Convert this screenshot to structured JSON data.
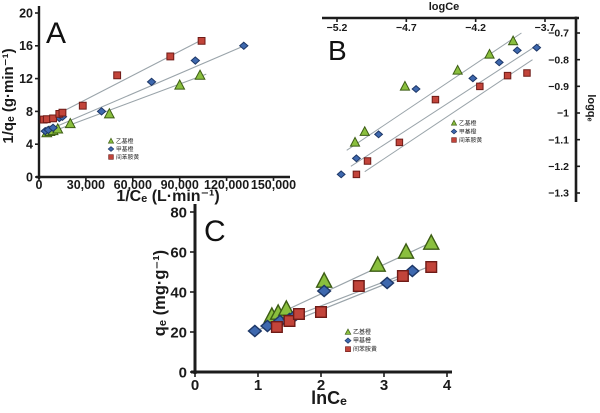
{
  "figure": {
    "description_labels": {
      "panel_a": "A",
      "panel_b": "B",
      "panel_c": "C"
    },
    "background": "#ffffff"
  },
  "colors": {
    "trend_line": "#9aa4aa",
    "axis": "#1c1c1c",
    "text": "#1a1a1a",
    "background": "#ffffff"
  },
  "legend": {
    "entries": [
      {
        "label": "乙基橙",
        "marker": "triangle",
        "fill": "#8abf3e",
        "stroke": "#3c5c14"
      },
      {
        "label": "甲基橙",
        "marker": "diamond",
        "fill": "#3e68ae",
        "stroke": "#1d3767"
      },
      {
        "label": "间苯胺黄",
        "marker": "square",
        "fill": "#c2443a",
        "stroke": "#6e1b17"
      }
    ]
  },
  "chart_data": [
    {
      "id": "A",
      "type": "scatter",
      "panel_label": "A",
      "xlabel": "1/Cₑ (L·min⁻¹)",
      "ylabel": "1/qₑ (g·min⁻¹)",
      "xlim": [
        0,
        156000
      ],
      "ylim": [
        0,
        20.5
      ],
      "xticks": [
        0,
        30000,
        60000,
        90000,
        120000,
        150000
      ],
      "xtick_labels": [
        "0",
        "30,000",
        "60,000",
        "90,000",
        "120,000",
        "150,000"
      ],
      "yticks": [
        0,
        4,
        8,
        12,
        16,
        20
      ],
      "ytick_labels": [
        "0",
        "4",
        "8",
        "12",
        "16",
        "20"
      ],
      "x_axis_side": "bottom",
      "y_axis_side": "left",
      "grid": false,
      "legend_position": "inside-lower-middle",
      "series": [
        {
          "name": "乙基橙",
          "marker": "triangle",
          "points": [
            [
              5000,
              5.4
            ],
            [
              7000,
              5.55
            ],
            [
              9000,
              5.65
            ],
            [
              12000,
              5.85
            ],
            [
              20000,
              6.5
            ],
            [
              45000,
              7.7
            ],
            [
              90000,
              11.2
            ],
            [
              103000,
              12.4
            ]
          ],
          "trend": [
            [
              3000,
              5.15
            ],
            [
              107000,
              12.55
            ]
          ]
        },
        {
          "name": "甲基橙",
          "marker": "diamond",
          "points": [
            [
              4000,
              5.6
            ],
            [
              6000,
              5.75
            ],
            [
              9000,
              6.0
            ],
            [
              13000,
              7.2
            ],
            [
              15000,
              7.35
            ],
            [
              40000,
              8.0
            ],
            [
              72000,
              11.6
            ],
            [
              100000,
              14.2
            ],
            [
              131000,
              16.0
            ]
          ],
          "trend": [
            [
              3000,
              5.5
            ],
            [
              133000,
              16.15
            ]
          ]
        },
        {
          "name": "间苯胺黄",
          "marker": "square",
          "points": [
            [
              3000,
              7.0
            ],
            [
              5000,
              7.05
            ],
            [
              9000,
              7.15
            ],
            [
              13000,
              7.7
            ],
            [
              15000,
              7.85
            ],
            [
              28000,
              8.7
            ],
            [
              50000,
              12.4
            ],
            [
              84000,
              14.7
            ],
            [
              104000,
              16.6
            ]
          ],
          "trend": [
            [
              3500,
              6.85
            ],
            [
              106000,
              16.9
            ]
          ]
        }
      ]
    },
    {
      "id": "B",
      "type": "scatter",
      "panel_label": "B",
      "xlabel": "logCe",
      "ylabel": "logqₑ",
      "xlim": [
        -5.3,
        -3.48
      ],
      "ylim": [
        -1.33,
        -0.64
      ],
      "xticks": [
        -5.2,
        -4.7,
        -4.2,
        -3.7
      ],
      "xtick_labels": [
        "−5.2",
        "−4.7",
        "−4.2",
        "−3.7"
      ],
      "yticks": [
        -0.7,
        -0.8,
        -0.9,
        -1.0,
        -1.1,
        -1.2,
        -1.3
      ],
      "ytick_labels": [
        "−0.7",
        "−0.8",
        "−0.9",
        "−1",
        "−1.1",
        "−1.2",
        "−1.3"
      ],
      "x_axis_side": "top",
      "y_axis_side": "right",
      "grid": false,
      "legend_position": "inside-center",
      "series": [
        {
          "name": "乙基橙",
          "marker": "triangle",
          "points": [
            [
              -5.07,
              -1.11
            ],
            [
              -5.0,
              -1.07
            ],
            [
              -4.71,
              -0.9
            ],
            [
              -4.33,
              -0.84
            ],
            [
              -4.1,
              -0.78
            ],
            [
              -3.93,
              -0.73
            ]
          ],
          "trend": [
            [
              -5.13,
              -1.14
            ],
            [
              -3.87,
              -0.7
            ]
          ]
        },
        {
          "name": "甲基橙",
          "marker": "diamond",
          "points": [
            [
              -5.17,
              -1.23
            ],
            [
              -5.06,
              -1.17
            ],
            [
              -4.9,
              -1.08
            ],
            [
              -4.63,
              -0.91
            ],
            [
              -4.22,
              -0.87
            ],
            [
              -4.03,
              -0.81
            ],
            [
              -3.9,
              -0.765
            ],
            [
              -3.76,
              -0.755
            ]
          ],
          "trend": [
            [
              -5.1,
              -1.2
            ],
            [
              -3.74,
              -0.74
            ]
          ]
        },
        {
          "name": "间苯胺黄",
          "marker": "square",
          "points": [
            [
              -5.06,
              -1.23
            ],
            [
              -4.98,
              -1.18
            ],
            [
              -4.75,
              -1.11
            ],
            [
              -4.49,
              -0.95
            ],
            [
              -4.17,
              -0.9
            ],
            [
              -3.97,
              -0.86
            ],
            [
              -3.83,
              -0.85
            ]
          ],
          "trend": [
            [
              -5.0,
              -1.22
            ],
            [
              -3.79,
              -0.8
            ]
          ]
        }
      ]
    },
    {
      "id": "C",
      "type": "scatter",
      "panel_label": "C",
      "xlabel": "lnCₑ",
      "ylabel": "qₑ (mg·g⁻¹)",
      "xlim": [
        0,
        4.2
      ],
      "ylim": [
        0,
        84
      ],
      "xticks": [
        0,
        1,
        2,
        3,
        4
      ],
      "xtick_labels": [
        "0",
        "1",
        "2",
        "3",
        "4"
      ],
      "yticks": [
        0,
        20,
        40,
        60,
        80
      ],
      "ytick_labels": [
        "0",
        "20",
        "40",
        "60",
        "80"
      ],
      "x_axis_side": "bottom",
      "y_axis_side": "left",
      "grid": false,
      "legend_position": "inside-lower-right",
      "series": [
        {
          "name": "乙基橙",
          "marker": "triangle",
          "points": [
            [
              1.22,
              28
            ],
            [
              1.32,
              29.5
            ],
            [
              1.45,
              31.5
            ],
            [
              2.05,
              45.5
            ],
            [
              2.9,
              53.5
            ],
            [
              3.35,
              60
            ],
            [
              3.75,
              64.5
            ]
          ],
          "trend": [
            [
              1.18,
              27
            ],
            [
              3.8,
              65.5
            ]
          ]
        },
        {
          "name": "甲基橙",
          "marker": "diamond",
          "points": [
            [
              0.95,
              20.5
            ],
            [
              1.15,
              23
            ],
            [
              1.35,
              25.5
            ],
            [
              1.5,
              26.5
            ],
            [
              1.6,
              28.5
            ],
            [
              2.05,
              40.5
            ],
            [
              3.05,
              44.5
            ],
            [
              3.45,
              50.5
            ]
          ],
          "trend": [
            [
              0.9,
              19.8
            ],
            [
              3.52,
              51.3
            ]
          ]
        },
        {
          "name": "间苯胺黄",
          "marker": "square",
          "points": [
            [
              1.3,
              22.5
            ],
            [
              1.5,
              25.5
            ],
            [
              1.65,
              29
            ],
            [
              2.0,
              30
            ],
            [
              2.6,
              43
            ],
            [
              3.3,
              48
            ],
            [
              3.75,
              52.5
            ]
          ],
          "trend": [
            [
              1.27,
              21.8
            ],
            [
              3.8,
              53.8
            ]
          ]
        }
      ]
    }
  ]
}
